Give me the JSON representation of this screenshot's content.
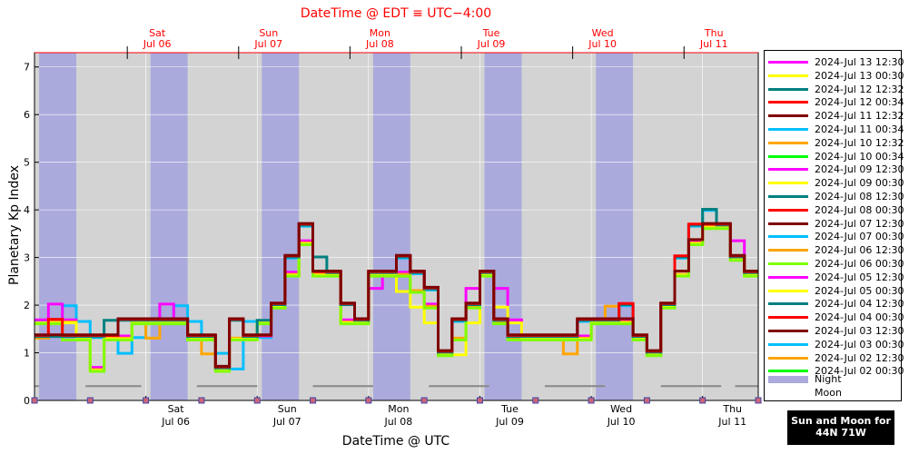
{
  "chart_data": {
    "type": "line",
    "title": "DateTime @ EDT ≡ UTC−4:00",
    "xlabel": "DateTime @ UTC",
    "ylabel": "Planetary Kp Index",
    "ylim": [
      0,
      7.3
    ],
    "y_ticks": [
      "0",
      "1",
      "2",
      "3",
      "4",
      "5",
      "6",
      "7"
    ],
    "x_range_days": [
      "2024-07-05 00:00",
      "2024-07-11 12:00"
    ],
    "top_axis_ticks": [
      {
        "day": "Sat",
        "date": "Jul 06",
        "at": "2024-07-05 20:00"
      },
      {
        "day": "Sun",
        "date": "Jul 07",
        "at": "2024-07-06 20:00"
      },
      {
        "day": "Mon",
        "date": "Jul 08",
        "at": "2024-07-07 20:00"
      },
      {
        "day": "Tue",
        "date": "Jul 09",
        "at": "2024-07-08 20:00"
      },
      {
        "day": "Wed",
        "date": "Jul 10",
        "at": "2024-07-09 20:00"
      },
      {
        "day": "Thu",
        "date": "Jul 11",
        "at": "2024-07-10 20:00"
      }
    ],
    "bottom_axis_ticks": [
      {
        "day": "Sat",
        "date": "Jul 06",
        "at": "2024-07-06 00:00"
      },
      {
        "day": "Sun",
        "date": "Jul 07",
        "at": "2024-07-07 00:00"
      },
      {
        "day": "Mon",
        "date": "Jul 08",
        "at": "2024-07-08 00:00"
      },
      {
        "day": "Tue",
        "date": "Jul 09",
        "at": "2024-07-09 00:00"
      },
      {
        "day": "Wed",
        "date": "Jul 10",
        "at": "2024-07-10 00:00"
      },
      {
        "day": "Thu",
        "date": "Jul 11",
        "at": "2024-07-11 00:00"
      }
    ],
    "x_bins": [
      "2024-07-05 00:00",
      "03:00",
      "06:00",
      "09:00",
      "12:00",
      "15:00",
      "18:00",
      "21:00",
      "2024-07-06 00:00",
      "03:00",
      "06:00",
      "09:00",
      "12:00",
      "15:00",
      "18:00",
      "21:00",
      "2024-07-07 00:00",
      "03:00",
      "06:00",
      "09:00",
      "12:00",
      "15:00",
      "18:00",
      "21:00",
      "2024-07-08 00:00",
      "03:00",
      "06:00",
      "09:00",
      "12:00",
      "15:00",
      "18:00",
      "21:00",
      "2024-07-09 00:00",
      "03:00",
      "06:00",
      "09:00",
      "12:00",
      "15:00",
      "18:00",
      "21:00",
      "2024-07-10 00:00",
      "03:00",
      "06:00",
      "09:00",
      "12:00",
      "15:00",
      "18:00",
      "21:00",
      "2024-07-11 00:00",
      "03:00",
      "06:00",
      "09:00"
    ],
    "night_shading": [
      [
        "2024-07-05 01:00",
        "2024-07-05 09:00"
      ],
      [
        "2024-07-06 01:00",
        "2024-07-06 09:00"
      ],
      [
        "2024-07-07 01:00",
        "2024-07-07 09:00"
      ],
      [
        "2024-07-08 01:00",
        "2024-07-08 09:00"
      ],
      [
        "2024-07-09 01:00",
        "2024-07-09 09:00"
      ],
      [
        "2024-07-10 01:00",
        "2024-07-10 09:00"
      ]
    ],
    "moon_segments": [
      [
        "2024-07-05 00:00",
        "2024-07-05 01:00"
      ],
      [
        "2024-07-05 11:00",
        "2024-07-05 23:00"
      ],
      [
        "2024-07-06 11:00",
        "2024-07-07 00:00"
      ],
      [
        "2024-07-07 12:00",
        "2024-07-08 01:00"
      ],
      [
        "2024-07-08 13:00",
        "2024-07-09 02:00"
      ],
      [
        "2024-07-09 14:00",
        "2024-07-10 03:00"
      ],
      [
        "2024-07-10 15:00",
        "2024-07-11 04:00"
      ],
      [
        "2024-07-11 07:00",
        "2024-07-11 12:00"
      ]
    ],
    "series": [
      {
        "name": "2024-Jul 13 12:30",
        "color": "#ff00ff",
        "style": "solid"
      },
      {
        "name": "2024-Jul 13 00:30",
        "color": "#ffff00",
        "style": "solid"
      },
      {
        "name": "2024-Jul 12 12:32",
        "color": "#008080",
        "style": "solid"
      },
      {
        "name": "2024-Jul 12 00:34",
        "color": "#ff0000",
        "style": "solid"
      },
      {
        "name": "2024-Jul 11 12:32",
        "color": "#800000",
        "style": "solid"
      },
      {
        "name": "2024-Jul 11 00:34",
        "color": "#00bfff",
        "style": "solid"
      },
      {
        "name": "2024-Jul 10 12:32",
        "color": "#ffa500",
        "style": "solid"
      },
      {
        "name": "2024-Jul 10 00:34",
        "color": "#00ff00",
        "style": "solid"
      },
      {
        "name": "2024-Jul 09 12:30",
        "color": "#ff00ff",
        "style": "solid"
      },
      {
        "name": "2024-Jul 09 00:30",
        "color": "#ffff00",
        "style": "solid"
      },
      {
        "name": "2024-Jul 08 12:30",
        "color": "#008080",
        "style": "solid"
      },
      {
        "name": "2024-Jul 08 00:30",
        "color": "#ff0000",
        "style": "solid"
      },
      {
        "name": "2024-Jul 07 12:30",
        "color": "#800000",
        "style": "solid"
      },
      {
        "name": "2024-Jul 07 00:30",
        "color": "#00bfff",
        "style": "solid"
      },
      {
        "name": "2024-Jul 06 12:30",
        "color": "#ffa500",
        "style": "solid"
      },
      {
        "name": "2024-Jul 06 00:30",
        "color": "#7fff00",
        "style": "solid"
      },
      {
        "name": "2024-Jul 05 12:30",
        "color": "#ff00ff",
        "style": "solid"
      },
      {
        "name": "2024-Jul 05 00:30",
        "color": "#ffff00",
        "style": "solid"
      },
      {
        "name": "2024-Jul 04 12:30",
        "color": "#008080",
        "style": "solid"
      },
      {
        "name": "2024-Jul 04 00:30",
        "color": "#ff0000",
        "style": "solid"
      },
      {
        "name": "2024-Jul 03 12:30",
        "color": "#800000",
        "style": "solid"
      },
      {
        "name": "2024-Jul 03 00:30",
        "color": "#00bfff",
        "style": "solid"
      },
      {
        "name": "2024-Jul 02 12:30",
        "color": "#ffa500",
        "style": "solid"
      },
      {
        "name": "2024-Jul 02 00:30",
        "color": "#00ff00",
        "style": "solid"
      }
    ],
    "plotted_traces": [
      {
        "color": "#00bfff",
        "offset": 0.6,
        "values": [
          1.67,
          1.67,
          2.0,
          1.67,
          1.33,
          1.33,
          1.0,
          1.33,
          1.67,
          1.67,
          2.0,
          1.67,
          1.33,
          1.0,
          0.67,
          1.67,
          1.33,
          2.0,
          3.0,
          3.67,
          2.67,
          2.67,
          1.67,
          1.67,
          2.67,
          2.67,
          3.0,
          2.67,
          2.33,
          1.0,
          1.67,
          2.0,
          2.67,
          1.67,
          1.33,
          1.33,
          1.33,
          1.33,
          1.33,
          1.67,
          1.67,
          1.67,
          2.0,
          1.33,
          1.0,
          2.0,
          3.0,
          3.67,
          4.0,
          3.67,
          3.0,
          2.67
        ]
      },
      {
        "color": "#ff00ff",
        "offset": -1.2,
        "values": [
          1.67,
          2.0,
          1.67,
          1.33,
          0.67,
          1.33,
          1.33,
          1.67,
          1.67,
          2.0,
          1.67,
          1.33,
          1.33,
          0.67,
          1.67,
          1.33,
          1.33,
          2.0,
          2.67,
          3.33,
          2.67,
          2.67,
          1.67,
          1.67,
          2.33,
          2.67,
          2.67,
          2.67,
          2.0,
          1.0,
          1.67,
          2.33,
          2.67,
          2.33,
          1.67,
          1.33,
          1.33,
          1.33,
          1.33,
          1.33,
          1.67,
          1.67,
          1.67,
          1.33,
          1.0,
          2.0,
          3.0,
          3.33,
          3.67,
          3.67,
          3.33,
          2.67
        ]
      },
      {
        "color": "#ffa500",
        "offset": 1.2,
        "values": [
          1.33,
          1.67,
          1.67,
          1.33,
          0.67,
          1.33,
          1.33,
          1.67,
          1.33,
          1.67,
          1.67,
          1.33,
          1.0,
          0.67,
          1.33,
          1.33,
          1.67,
          2.0,
          2.67,
          3.33,
          2.67,
          2.67,
          1.67,
          1.67,
          2.67,
          2.67,
          2.67,
          2.33,
          2.0,
          1.0,
          1.33,
          2.0,
          2.67,
          1.67,
          1.33,
          1.33,
          1.33,
          1.33,
          1.0,
          1.33,
          1.67,
          2.0,
          1.67,
          1.33,
          1.0,
          2.0,
          2.67,
          3.33,
          3.67,
          3.67,
          3.0,
          2.67
        ]
      },
      {
        "color": "#ffff00",
        "offset": 2.2,
        "values": [
          1.67,
          1.67,
          1.67,
          1.33,
          0.67,
          1.33,
          1.33,
          1.67,
          1.67,
          1.67,
          1.67,
          1.33,
          1.33,
          0.67,
          1.33,
          1.33,
          1.67,
          2.0,
          2.67,
          3.33,
          2.67,
          2.67,
          1.67,
          1.67,
          2.67,
          2.67,
          2.33,
          2.0,
          1.67,
          1.0,
          1.0,
          1.67,
          2.67,
          2.0,
          1.67,
          1.33,
          1.33,
          1.33,
          1.33,
          1.33,
          1.67,
          1.67,
          1.67,
          1.33,
          1.0,
          2.0,
          2.67,
          3.33,
          3.67,
          3.67,
          3.0,
          2.67
        ]
      },
      {
        "color": "#7fff00",
        "offset": 3.2,
        "values": [
          1.67,
          1.67,
          1.33,
          1.33,
          0.67,
          1.33,
          1.33,
          1.67,
          1.67,
          1.67,
          1.67,
          1.33,
          1.33,
          0.67,
          1.33,
          1.33,
          1.67,
          2.0,
          2.67,
          3.33,
          2.67,
          2.67,
          1.67,
          1.67,
          2.67,
          2.67,
          2.67,
          2.33,
          2.0,
          1.0,
          1.33,
          2.0,
          2.67,
          1.67,
          1.33,
          1.33,
          1.33,
          1.33,
          1.33,
          1.33,
          1.67,
          1.67,
          1.67,
          1.33,
          1.0,
          2.0,
          2.67,
          3.33,
          3.67,
          3.67,
          3.0,
          2.67
        ]
      },
      {
        "color": "#008080",
        "offset": -0.6,
        "values": [
          1.33,
          1.33,
          1.33,
          1.33,
          1.33,
          1.67,
          1.67,
          1.67,
          1.67,
          1.67,
          1.67,
          1.33,
          1.33,
          0.67,
          1.67,
          1.33,
          1.67,
          2.0,
          3.0,
          3.67,
          3.0,
          2.67,
          2.0,
          1.67,
          2.67,
          2.67,
          3.0,
          2.67,
          2.33,
          1.0,
          1.67,
          2.0,
          2.67,
          1.67,
          1.33,
          1.33,
          1.33,
          1.33,
          1.33,
          1.67,
          1.67,
          1.67,
          2.0,
          1.33,
          1.0,
          2.0,
          3.0,
          3.67,
          4.0,
          3.67,
          3.0,
          2.67
        ]
      },
      {
        "color": "#ff0000",
        "offset": -1.8,
        "values": [
          1.33,
          1.67,
          1.33,
          1.33,
          1.33,
          1.33,
          1.67,
          1.67,
          1.67,
          1.67,
          1.67,
          1.33,
          1.33,
          0.67,
          1.67,
          1.33,
          1.33,
          2.0,
          3.0,
          3.67,
          2.67,
          2.67,
          2.0,
          1.67,
          2.67,
          2.67,
          3.0,
          2.67,
          2.33,
          1.0,
          1.67,
          2.0,
          2.67,
          1.67,
          1.33,
          1.33,
          1.33,
          1.33,
          1.33,
          1.67,
          1.67,
          1.67,
          2.0,
          1.33,
          1.0,
          2.0,
          3.0,
          3.67,
          3.67,
          3.67,
          3.0,
          2.67
        ]
      },
      {
        "color": "#800000",
        "offset": -2.4,
        "values": [
          1.33,
          1.33,
          1.33,
          1.33,
          1.33,
          1.33,
          1.67,
          1.67,
          1.67,
          1.67,
          1.67,
          1.33,
          1.33,
          0.67,
          1.67,
          1.33,
          1.33,
          2.0,
          3.0,
          3.67,
          2.67,
          2.67,
          2.0,
          1.67,
          2.67,
          2.67,
          3.0,
          2.67,
          2.33,
          1.0,
          1.67,
          2.0,
          2.67,
          1.67,
          1.33,
          1.33,
          1.33,
          1.33,
          1.33,
          1.67,
          1.67,
          1.67,
          1.67,
          1.33,
          1.0,
          2.0,
          2.67,
          3.33,
          3.67,
          3.67,
          3.0,
          2.67
        ]
      }
    ],
    "grid": true,
    "legend_position": "right",
    "extra_legend": [
      {
        "label": "Night",
        "color": "#aaaadd"
      },
      {
        "label": "Moon",
        "color": "#ffffff"
      }
    ],
    "location_badge": [
      "Sun and Moon for",
      "44N 71W"
    ]
  }
}
